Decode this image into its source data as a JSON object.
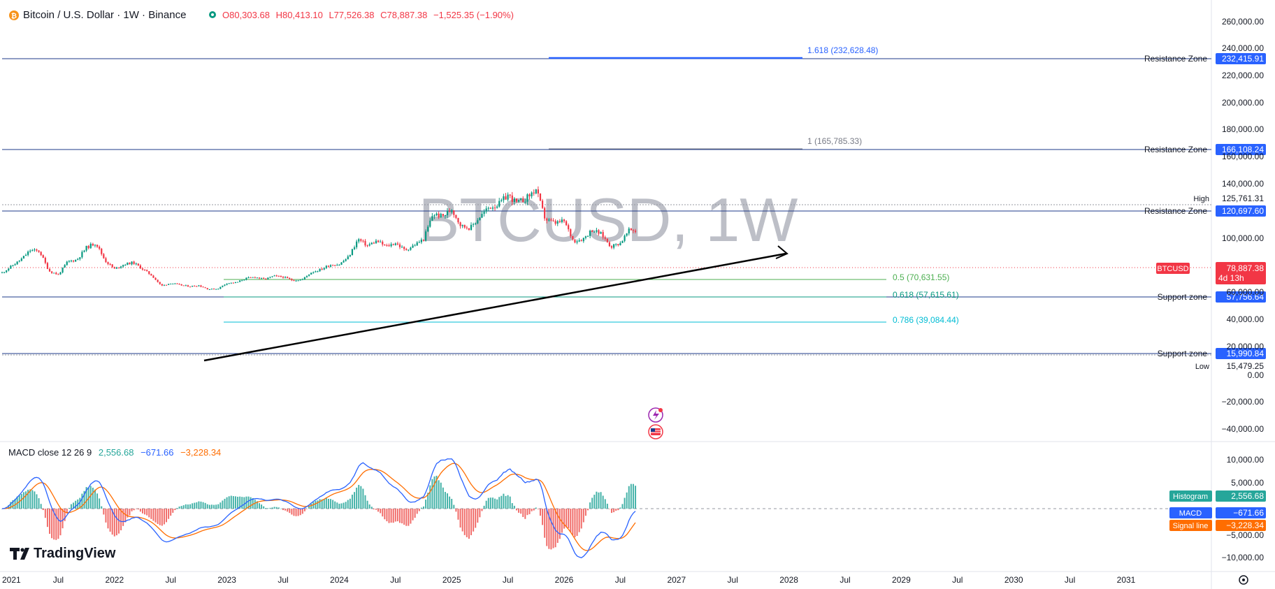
{
  "header": {
    "symbol_title": "Bitcoin / U.S. Dollar · 1W · Binance",
    "ohlc": {
      "o": "O80,303.68",
      "h": "H80,413.10",
      "l": "L77,526.38",
      "c": "C78,887.38",
      "chg": "−1,525.35 (−1.90%)"
    }
  },
  "watermark": "BTCUSD, 1W",
  "logo_text": "TradingView",
  "price_axis": {
    "ticks": [
      "260,000.00",
      "240,000.00",
      "220,000.00",
      "200,000.00",
      "180,000.00",
      "160,000.00",
      "140,000.00",
      "100,000.00",
      "60,000.00",
      "40,000.00",
      "20,000.00",
      "0.00",
      "−20,000.00",
      "−40,000.00"
    ],
    "high_label": "High",
    "high_value": "125,761.31",
    "low_label": "Low",
    "low_value": "15,479.25",
    "price_badge": "BTCUSD",
    "price_value": "78,887.38",
    "countdown": "4d 13h"
  },
  "zones": [
    {
      "label": "Resistance Zone",
      "value": "232,415.91"
    },
    {
      "label": "Resistance Zone",
      "value": "166,108.24"
    },
    {
      "label": "Resistance Zone",
      "value": "120,697.60"
    },
    {
      "label": "Support zone",
      "value": "57,756.64"
    },
    {
      "label": "Support zone",
      "value": "15,990.84"
    }
  ],
  "fib_labels": [
    {
      "text": "1.618 (232,628.48)",
      "color": "#2962ff"
    },
    {
      "text": "1 (165,785.33)",
      "color": "#787b86"
    },
    {
      "text": "0.5 (70,631.55)",
      "color": "#4caf50"
    },
    {
      "text": "0.618 (57,615.61)",
      "color": "#089981"
    },
    {
      "text": "0.786 (39,084.44)",
      "color": "#00bcd4"
    }
  ],
  "macd": {
    "title": "MACD close 12 26 9",
    "values": [
      "2,556.68",
      "−671.66",
      "−3,228.34"
    ],
    "ticks": [
      "10,000.00",
      "5,000.00",
      "−5,000.00",
      "−10,000.00"
    ],
    "badges": [
      {
        "label": "Histogram",
        "value": "2,556.68",
        "color": "#26a69a"
      },
      {
        "label": "MACD",
        "value": "−671.66",
        "color": "#2962ff"
      },
      {
        "label": "Signal line",
        "value": "−3,228.34",
        "color": "#ff6d00"
      }
    ]
  },
  "time_axis": [
    "2021",
    "Jul",
    "2022",
    "Jul",
    "2023",
    "Jul",
    "2024",
    "Jul",
    "2025",
    "Jul",
    "2026",
    "Jul",
    "2027",
    "Jul",
    "2028",
    "Jul",
    "2029",
    "Jul",
    "2030",
    "Jul",
    "2031"
  ],
  "colors": {
    "up": "#089981",
    "down": "#f23645",
    "zone_line": "#1e3a8a",
    "accent": "#2962ff"
  },
  "chart_data": {
    "type": "candlestick",
    "title": "BTCUSD, 1W",
    "ylim": [
      -45000,
      270000
    ],
    "anchors": [
      [
        "2021-01",
        34000
      ],
      [
        "2021-03",
        48000
      ],
      [
        "2021-04",
        58000
      ],
      [
        "2021-05",
        57000
      ],
      [
        "2021-06",
        36000
      ],
      [
        "2021-07",
        32000
      ],
      [
        "2021-08",
        46000
      ],
      [
        "2021-09",
        48000
      ],
      [
        "2021-10",
        61000
      ],
      [
        "2021-11",
        66000
      ],
      [
        "2021-12",
        47000
      ],
      [
        "2022-01",
        38000
      ],
      [
        "2022-02",
        43000
      ],
      [
        "2022-03",
        45000
      ],
      [
        "2022-04",
        38000
      ],
      [
        "2022-05",
        31000
      ],
      [
        "2022-06",
        20000
      ],
      [
        "2022-07",
        23000
      ],
      [
        "2022-08",
        21000
      ],
      [
        "2022-09",
        19500
      ],
      [
        "2022-10",
        20500
      ],
      [
        "2022-11",
        16500
      ],
      [
        "2022-12",
        16800
      ],
      [
        "2023-01",
        23000
      ],
      [
        "2023-02",
        23500
      ],
      [
        "2023-03",
        28000
      ],
      [
        "2023-04",
        29500
      ],
      [
        "2023-05",
        27000
      ],
      [
        "2023-06",
        30500
      ],
      [
        "2023-07",
        29500
      ],
      [
        "2023-08",
        26000
      ],
      [
        "2023-09",
        26500
      ],
      [
        "2023-10",
        34500
      ],
      [
        "2023-11",
        37500
      ],
      [
        "2023-12",
        42500
      ],
      [
        "2024-01",
        43000
      ],
      [
        "2024-02",
        51000
      ],
      [
        "2024-03",
        70000
      ],
      [
        "2024-04",
        63000
      ],
      [
        "2024-05",
        68000
      ],
      [
        "2024-06",
        62000
      ],
      [
        "2024-07",
        66000
      ],
      [
        "2024-08",
        58000
      ],
      [
        "2024-09",
        63500
      ],
      [
        "2024-10",
        70000
      ],
      [
        "2024-11",
        97000
      ],
      [
        "2024-12",
        94000
      ],
      [
        "2025-01",
        102000
      ],
      [
        "2025-02",
        84000
      ],
      [
        "2025-03",
        82000
      ],
      [
        "2025-04",
        94000
      ],
      [
        "2025-05",
        104000
      ],
      [
        "2025-06",
        107000
      ],
      [
        "2025-07",
        117000
      ],
      [
        "2025-08",
        108000
      ],
      [
        "2025-09",
        114000
      ],
      [
        "2025-10",
        123000
      ],
      [
        "2025-11",
        91000
      ],
      [
        "2025-12",
        87000
      ],
      [
        "2026-01",
        89000
      ],
      [
        "2026-02",
        68000
      ],
      [
        "2026-03",
        70000
      ],
      [
        "2026-04",
        80000
      ],
      [
        "2026-05",
        75000
      ],
      [
        "2026-06",
        62000
      ],
      [
        "2026-07",
        66000
      ],
      [
        "2026-08",
        80000
      ],
      [
        "2026-08-20",
        78887
      ]
    ]
  }
}
